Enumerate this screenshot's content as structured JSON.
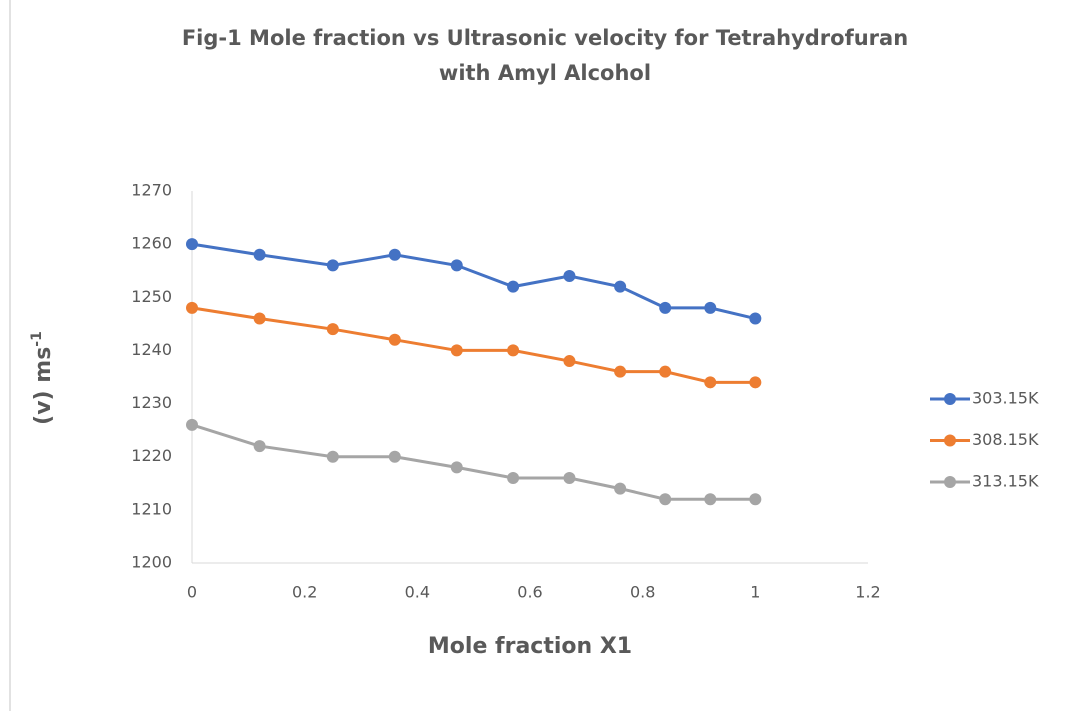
{
  "chart_data": {
    "type": "line",
    "title": [
      "Fig-1 Mole fraction vs Ultrasonic velocity for Tetrahydrofuran",
      "with Amyl Alcohol"
    ],
    "x_label": "Mole fraction X1",
    "y_label": "(v)  ms",
    "y_label_sup": "-1",
    "x": [
      0,
      0.12,
      0.25,
      0.36,
      0.47,
      0.57,
      0.67,
      0.76,
      0.84,
      0.92,
      1
    ],
    "series": [
      {
        "name": "303.15K",
        "color": "#4472c4",
        "values": [
          1260,
          1258,
          1256,
          1258,
          1256,
          1252,
          1254,
          1252,
          1248,
          1248,
          1246
        ]
      },
      {
        "name": "308.15K",
        "color": "#ed7d31",
        "values": [
          1248,
          1246,
          1244,
          1242,
          1240,
          1240,
          1238,
          1236,
          1236,
          1234,
          1234
        ]
      },
      {
        "name": "313.15K",
        "color": "#a5a5a5",
        "values": [
          1226,
          1222,
          1220,
          1220,
          1218,
          1216,
          1216,
          1214,
          1212,
          1212,
          1212
        ]
      }
    ],
    "xlim": [
      0,
      1.2
    ],
    "xticks": [
      0,
      0.2,
      0.4,
      0.6,
      0.8,
      1,
      1.2
    ],
    "ylim": [
      1200,
      1270
    ],
    "yticks": [
      1200,
      1210,
      1220,
      1230,
      1240,
      1250,
      1260,
      1270
    ],
    "grid": false,
    "legend": "right"
  }
}
